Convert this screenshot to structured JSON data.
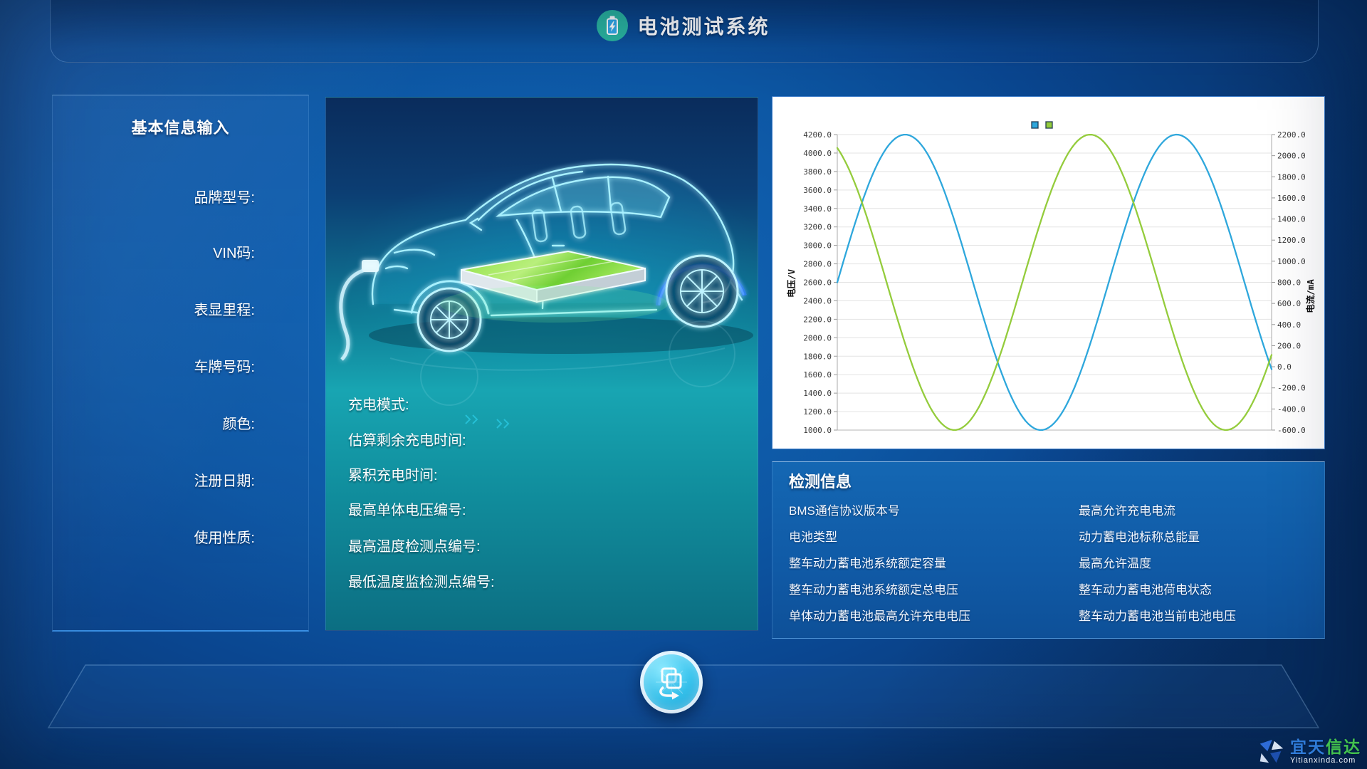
{
  "app": {
    "title": "电池测试系统",
    "icon": "battery-charging-icon"
  },
  "sidebar": {
    "title": "基本信息输入",
    "fields": [
      "品牌型号:",
      "VIN码:",
      "表显里程:",
      "车牌号码:",
      "颜色:",
      "注册日期:",
      "使用性质:"
    ]
  },
  "vehicle_panel": {
    "fields": [
      "充电模式:",
      "估算剩余充电时间:",
      "累积充电时间:",
      "最高单体电压编号:",
      "最高温度检测点编号:",
      "最低温度监检测点编号:"
    ]
  },
  "chart_data": {
    "type": "line",
    "title": "",
    "grid": true,
    "legend": {
      "position": "top-right",
      "markers": [
        {
          "series": "电压",
          "color": "#2ea7dc"
        },
        {
          "series": "电流",
          "color": "#94cc3c"
        }
      ]
    },
    "x_axis": {
      "label": "",
      "tick_labels_visible": false,
      "range_fraction": [
        0,
        1
      ]
    },
    "y_axis_left": {
      "label": "电压/V",
      "min": 1000.0,
      "max": 4200.0,
      "tick_step": 200.0,
      "ticks": [
        "4200.0",
        "4000.0",
        "3800.0",
        "3600.0",
        "3400.0",
        "3200.0",
        "3000.0",
        "2800.0",
        "2600.0",
        "2400.0",
        "2200.0",
        "2000.0",
        "1800.0",
        "1600.0",
        "1400.0",
        "1200.0",
        "1000.0"
      ]
    },
    "y_axis_right": {
      "label": "电流/mA",
      "min": -600.0,
      "max": 2200.0,
      "tick_step": 200.0,
      "ticks": [
        "2200.0",
        "2000.0",
        "1800.0",
        "1600.0",
        "1400.0",
        "1200.0",
        "1000.0",
        "800.0",
        "600.0",
        "400.0",
        "200.0",
        "0.0",
        "-200.0",
        "-400.0",
        "-600.0"
      ]
    },
    "series": [
      {
        "name": "电压",
        "axis": "left",
        "color": "#2ea7dc",
        "shape": "sine",
        "wave": {
          "center": 2600,
          "amplitude": 1600,
          "cycles": 1.6,
          "phase_rad": 0.0
        },
        "keypoints_x_fraction_value": [
          [
            0.0,
            2600
          ],
          [
            0.156,
            4200
          ],
          [
            0.469,
            1000
          ],
          [
            0.781,
            4200
          ],
          [
            1.0,
            1660
          ]
        ]
      },
      {
        "name": "电流",
        "axis": "right",
        "color": "#94cc3c",
        "shape": "sine",
        "wave": {
          "center": 800,
          "amplitude": 1400,
          "cycles": 1.6,
          "phase_rad": 2.0
        },
        "keypoints_x_fraction_value": [
          [
            0.0,
            2075
          ],
          [
            0.27,
            -600
          ],
          [
            0.582,
            2200
          ],
          [
            0.895,
            -600
          ],
          [
            1.0,
            120
          ]
        ]
      }
    ]
  },
  "detection_panel": {
    "title": "检测信息",
    "left_items": [
      "BMS通信协议版本号",
      "电池类型",
      "整车动力蓄电池系统额定容量",
      "整车动力蓄电池系统额定总电压",
      "单体动力蓄电池最高允许充电电压"
    ],
    "right_items": [
      "最高允许充电电流",
      "动力蓄电池标称总能量",
      "最高允许温度",
      "整车动力蓄电池荷电状态",
      "整车动力蓄电池当前电池电压"
    ]
  },
  "footer": {
    "button_icon": "transfer-icon"
  },
  "watermark": {
    "name_part1": "宜天",
    "name_part2": "信达",
    "site": "Yitianxinda.com"
  },
  "colors": {
    "accent_teal": "#2ab5a0",
    "voltage_line": "#2ea7dc",
    "current_line": "#94cc3c",
    "chart_bg": "#ffffff",
    "battery_green": "#8fe045",
    "panel_blue": "#1467b3"
  }
}
